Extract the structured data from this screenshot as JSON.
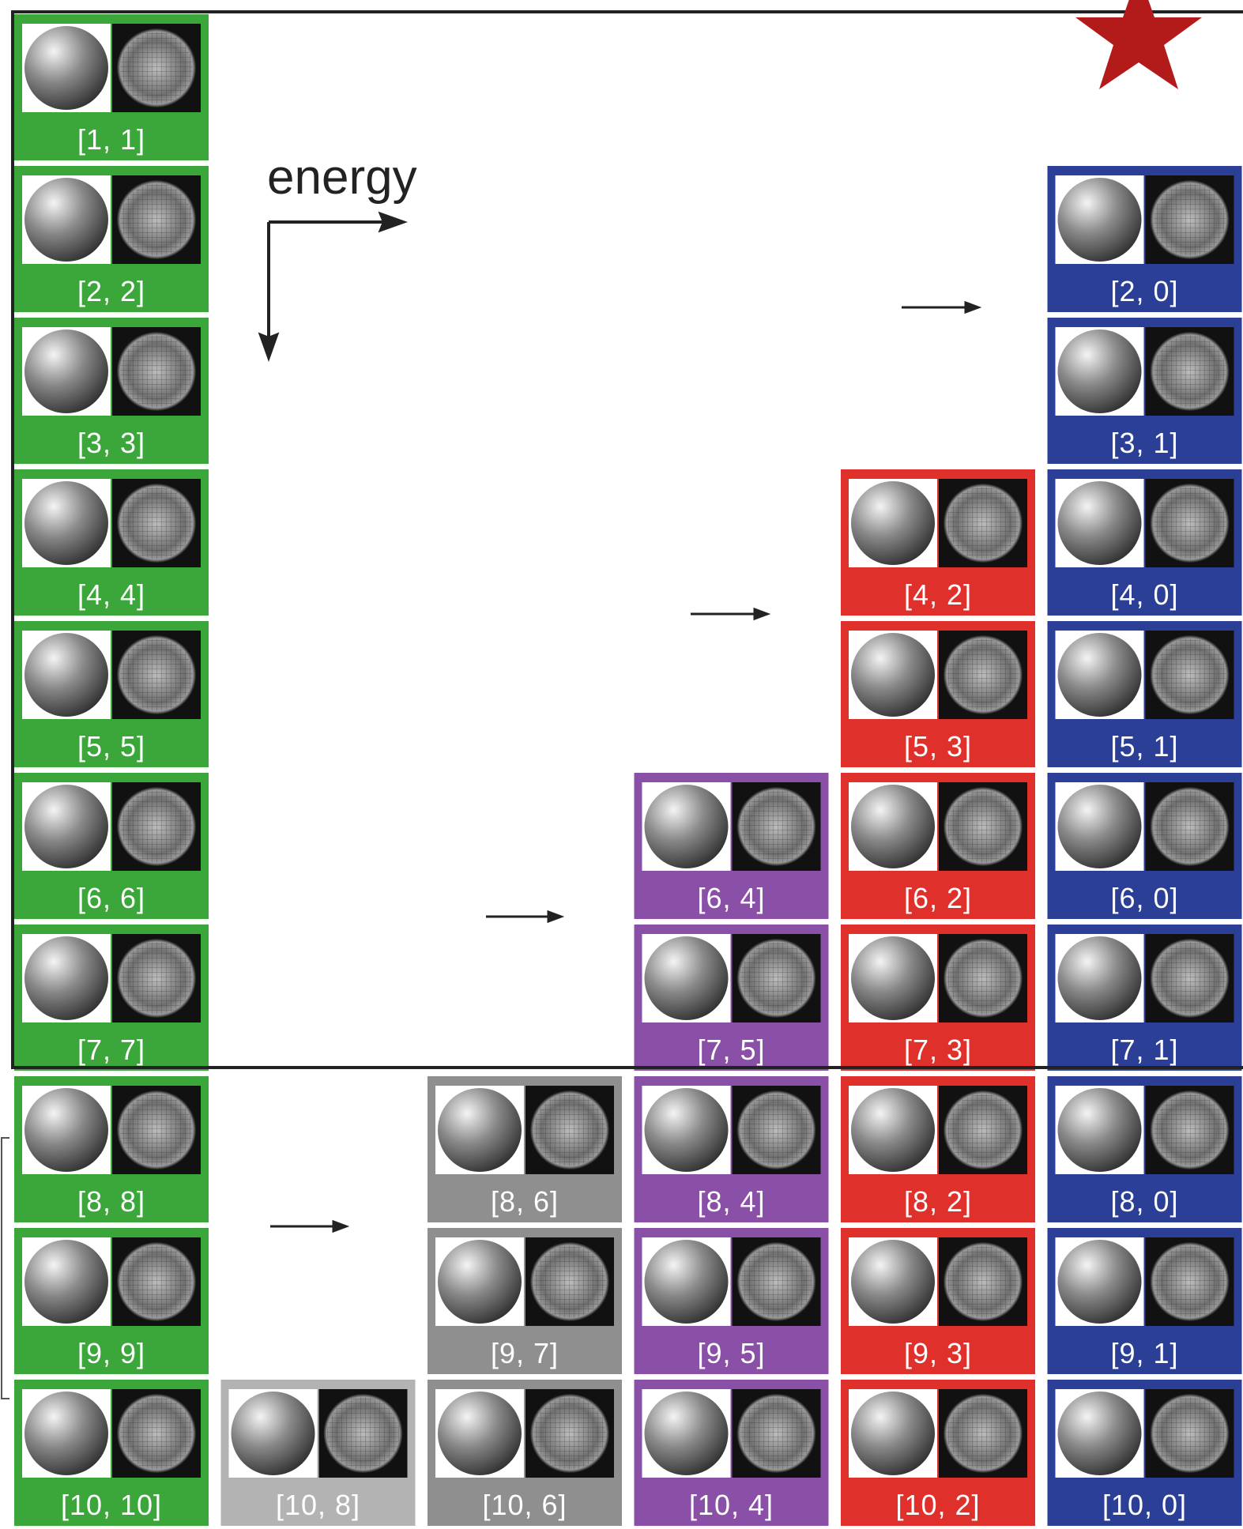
{
  "axis_label": "energy",
  "columns": [
    {
      "color": "#3ba63a",
      "tiles": [
        "[1, 1]",
        "[2, 2]",
        "[3, 3]",
        "[4, 4]",
        "[5, 5]",
        "[6, 6]",
        "[7, 7]",
        "[8, 8]",
        "[9, 9]",
        "[10, 10]"
      ]
    },
    {
      "color": "#b3b3b3",
      "tiles": [
        "[10, 8]"
      ]
    },
    {
      "color": "#8f8f8f",
      "tiles": [
        "[8, 6]",
        "[9, 7]",
        "[10, 6]"
      ]
    },
    {
      "color": "#8a4fa6",
      "tiles": [
        "[6, 4]",
        "[7, 5]",
        "[8, 4]",
        "[9, 5]",
        "[10, 4]"
      ]
    },
    {
      "color": "#e0302c",
      "tiles": [
        "[4, 2]",
        "[5, 3]",
        "[6, 2]",
        "[7, 3]",
        "[8, 2]",
        "[9, 3]",
        "[10, 2]"
      ]
    },
    {
      "color": "#2b3f96",
      "tiles": [
        "[2, 0]",
        "[3, 1]",
        "[4, 0]",
        "[5, 1]",
        "[6, 0]",
        "[7, 1]",
        "[8, 0]",
        "[9, 1]",
        "[10, 0]"
      ]
    }
  ]
}
